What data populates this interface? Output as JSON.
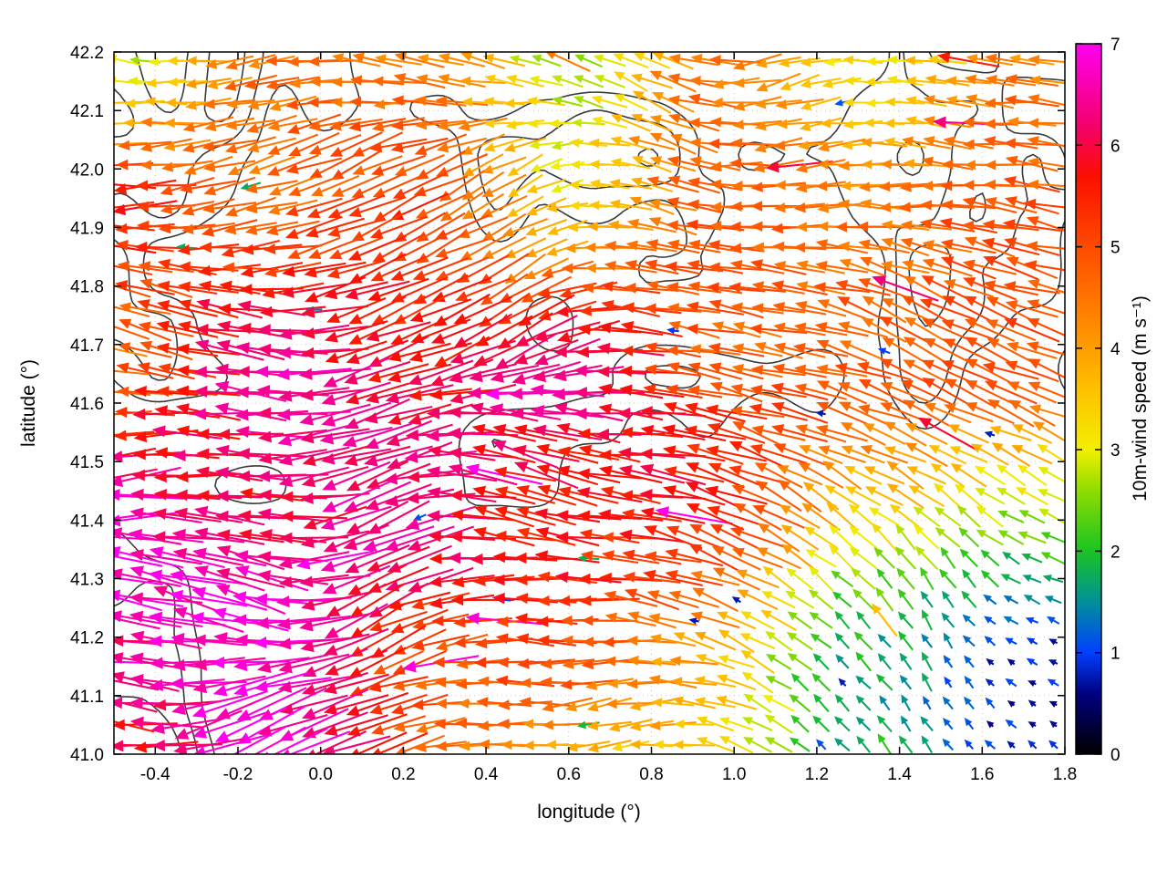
{
  "chart_data": {
    "type": "quiver",
    "title": "",
    "xlabel": "longitude (°)",
    "ylabel": "latitude (°)",
    "xlim": [
      -0.5,
      1.8
    ],
    "ylim": [
      41.0,
      42.2
    ],
    "grid": "dotted",
    "background": "#ffffff",
    "x_ticks": [
      {
        "v": -0.4,
        "label": "-0.4"
      },
      {
        "v": -0.2,
        "label": "-0.2"
      },
      {
        "v": 0.0,
        "label": "0.0"
      },
      {
        "v": 0.2,
        "label": "0.2"
      },
      {
        "v": 0.4,
        "label": "0.4"
      },
      {
        "v": 0.6,
        "label": "0.6"
      },
      {
        "v": 0.8,
        "label": "0.8"
      },
      {
        "v": 1.0,
        "label": "1.0"
      },
      {
        "v": 1.2,
        "label": "1.2"
      },
      {
        "v": 1.4,
        "label": "1.4"
      },
      {
        "v": 1.6,
        "label": "1.6"
      },
      {
        "v": 1.8,
        "label": "1.8"
      }
    ],
    "y_ticks": [
      {
        "v": 41.0,
        "label": "41.0"
      },
      {
        "v": 41.1,
        "label": "41.1"
      },
      {
        "v": 41.2,
        "label": "41.2"
      },
      {
        "v": 41.3,
        "label": "41.3"
      },
      {
        "v": 41.4,
        "label": "41.4"
      },
      {
        "v": 41.5,
        "label": "41.5"
      },
      {
        "v": 41.6,
        "label": "41.6"
      },
      {
        "v": 41.7,
        "label": "41.7"
      },
      {
        "v": 41.8,
        "label": "41.8"
      },
      {
        "v": 41.9,
        "label": "41.9"
      },
      {
        "v": 42.0,
        "label": "42.0"
      },
      {
        "v": 42.1,
        "label": "42.1"
      },
      {
        "v": 42.2,
        "label": "42.2"
      }
    ],
    "colorbar": {
      "label": "10m-wind speed (m s⁻¹)",
      "range": [
        0,
        7
      ],
      "ticks": [
        {
          "v": 0,
          "label": "0"
        },
        {
          "v": 1,
          "label": "1"
        },
        {
          "v": 2,
          "label": "2"
        },
        {
          "v": 3,
          "label": "3"
        },
        {
          "v": 4,
          "label": "4"
        },
        {
          "v": 5,
          "label": "5"
        },
        {
          "v": 6,
          "label": "6"
        },
        {
          "v": 7,
          "label": "7"
        }
      ],
      "palette_stops": [
        [
          0.0,
          "#000000"
        ],
        [
          0.6,
          "#000080"
        ],
        [
          1.0,
          "#0040ff"
        ],
        [
          1.5,
          "#00909a"
        ],
        [
          2.0,
          "#19c421"
        ],
        [
          2.6,
          "#8fdc00"
        ],
        [
          3.0,
          "#f2ef00"
        ],
        [
          3.6,
          "#ffc000"
        ],
        [
          4.2,
          "#ff8c00"
        ],
        [
          5.0,
          "#ff4a00"
        ],
        [
          5.7,
          "#fb0f00"
        ],
        [
          6.2,
          "#f4006e"
        ],
        [
          7.0,
          "#ff00f0"
        ]
      ]
    },
    "wind_field": {
      "description": "10 m wind vectors on a regular lon-lat grid over Catalonia, arrow colour and length scale with speed; strong 6-7 m/s westward jet in SW quadrant, 4-5 m/s over centre/north, weak 1-2 m/s flow in the SE (Ebro plain) corner",
      "grid_lon": [
        -0.5,
        0.08,
        0.65,
        1.22,
        1.8
      ],
      "grid_lat": [
        42.2,
        41.9,
        41.6,
        41.3,
        41.0
      ],
      "speed": [
        [
          3.6,
          3.8,
          3.6,
          3.4,
          3.1
        ],
        [
          4.6,
          5.0,
          4.6,
          4.2,
          3.9
        ],
        [
          5.8,
          6.3,
          5.6,
          4.6,
          3.9
        ],
        [
          6.8,
          6.7,
          5.6,
          2.6,
          2.1
        ],
        [
          5.6,
          6.4,
          4.2,
          1.9,
          1.6
        ]
      ],
      "direction_deg": [
        [
          185,
          190,
          183,
          175,
          168
        ],
        [
          183,
          186,
          181,
          174,
          163
        ],
        [
          180,
          182,
          184,
          178,
          158
        ],
        [
          178,
          180,
          186,
          152,
          140
        ],
        [
          178,
          183,
          191,
          146,
          128
        ]
      ]
    },
    "contours": {
      "description": "terrain elevation contour lines (dark grey), dense over mountains, sparse over SE plain",
      "color": "#3a3a3a",
      "levels": [
        0.55,
        0.64,
        0.73
      ]
    },
    "arrow_grid": {
      "nx": 45,
      "ny": 34,
      "edge_pad": [
        12,
        10
      ]
    }
  }
}
